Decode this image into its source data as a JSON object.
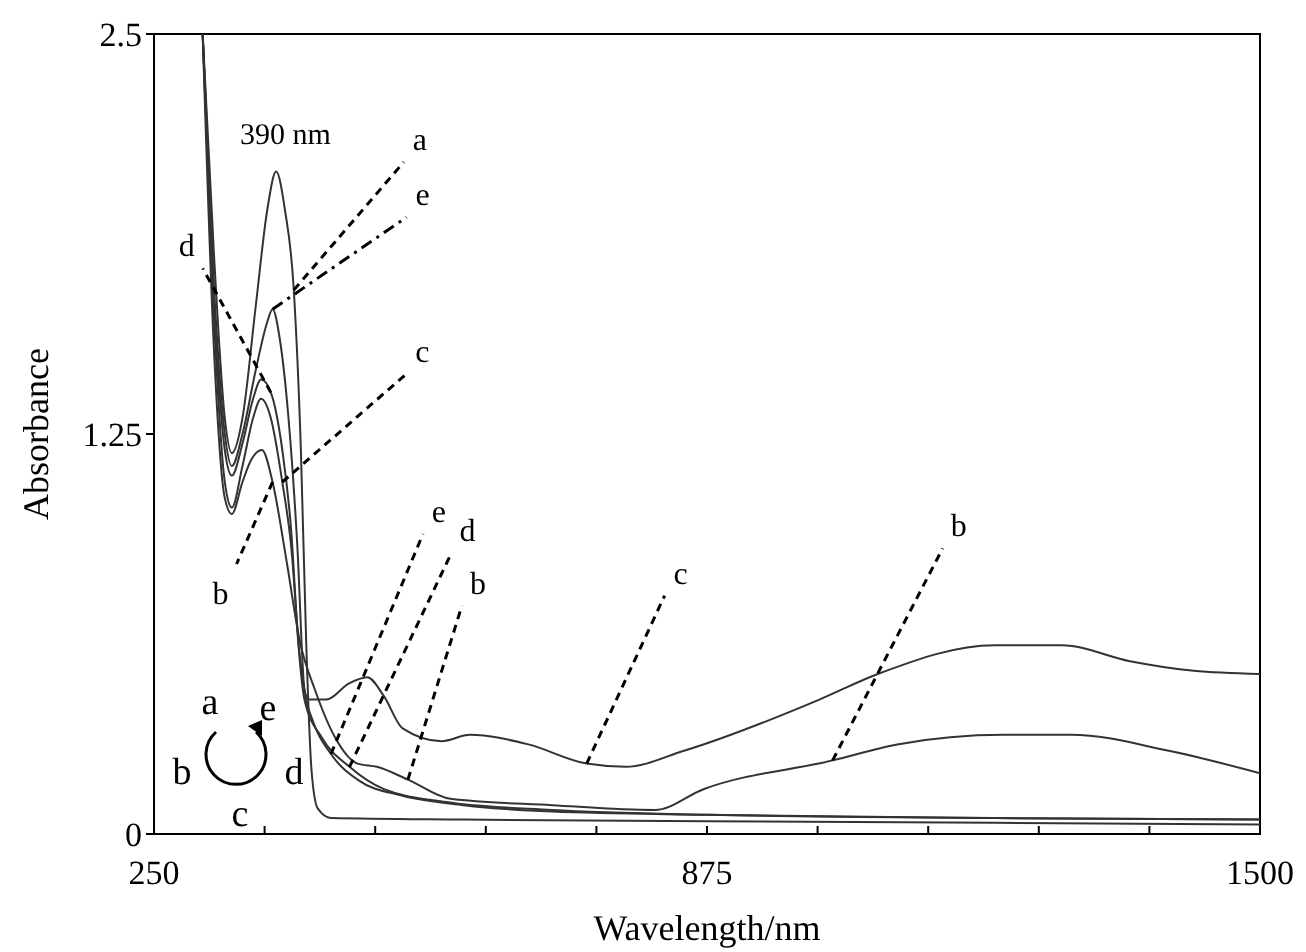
{
  "chart_data": {
    "type": "line",
    "xlabel": "Wavelength/nm",
    "ylabel": "Absorbance",
    "xlim": [
      250,
      1500
    ],
    "ylim": [
      0,
      2.5
    ],
    "xticks": [
      250,
      {
        "value": 375,
        "label": null
      },
      {
        "value": 500,
        "label": null
      },
      {
        "value": 625,
        "label": null
      },
      {
        "value": 750,
        "label": null
      },
      875,
      {
        "value": 1000,
        "label": null
      },
      {
        "value": 1125,
        "label": null
      },
      {
        "value": 1250,
        "label": null
      },
      {
        "value": 1375,
        "label": null
      },
      1500
    ],
    "yticks": [
      0,
      1.25,
      2.5
    ],
    "grid": false,
    "marker": "none",
    "line_style": "solid",
    "series": [
      {
        "color": "#333333",
        "x": [
          305,
          318,
          330,
          338,
          350,
          365,
          378,
          388,
          398,
          408,
          416,
          422,
          428,
          435,
          450,
          600,
          875,
          1200,
          1500
        ],
        "values": [
          2.5,
          1.8,
          1.3,
          1.19,
          1.3,
          1.65,
          1.95,
          2.07,
          1.95,
          1.7,
          1.2,
          0.6,
          0.2,
          0.08,
          0.05,
          0.045,
          0.04,
          0.035,
          0.03
        ]
      },
      {
        "color": "#333333",
        "x": [
          305,
          318,
          330,
          338,
          350,
          360,
          372,
          384,
          400,
          415,
          432,
          455,
          480,
          502,
          537,
          585,
          700,
          816,
          871,
          1017,
          1090,
          1210,
          1287,
          1397,
          1500
        ],
        "values": [
          2.5,
          1.5,
          1.05,
          1.0,
          1.1,
          1.17,
          1.2,
          1.1,
          0.85,
          0.6,
          0.45,
          0.3,
          0.22,
          0.21,
          0.17,
          0.11,
          0.09,
          0.075,
          0.14,
          0.23,
          0.28,
          0.31,
          0.31,
          0.26,
          0.19
        ]
      },
      {
        "color": "#333333",
        "x": [
          305,
          318,
          330,
          338,
          350,
          362,
          371,
          382,
          395,
          405,
          415,
          425,
          445,
          470,
          491,
          510,
          531,
          575,
          607,
          673,
          739,
          783,
          849,
          1002,
          1068,
          1200,
          1276,
          1353,
          1425,
          1500
        ],
        "values": [
          2.5,
          1.6,
          1.1,
          1.02,
          1.15,
          1.3,
          1.36,
          1.3,
          1.1,
          0.9,
          0.55,
          0.42,
          0.42,
          0.47,
          0.49,
          0.43,
          0.33,
          0.29,
          0.31,
          0.28,
          0.22,
          0.21,
          0.26,
          0.42,
          0.5,
          0.59,
          0.59,
          0.54,
          0.51,
          0.5
        ]
      },
      {
        "color": "#333333",
        "x": [
          305,
          318,
          330,
          338,
          350,
          362,
          371,
          382,
          395,
          405,
          413,
          420,
          440,
          471,
          510,
          580,
          700,
          875,
          1200,
          1500
        ],
        "values": [
          2.5,
          1.65,
          1.2,
          1.12,
          1.22,
          1.36,
          1.42,
          1.38,
          1.2,
          0.95,
          0.6,
          0.42,
          0.3,
          0.21,
          0.14,
          0.1,
          0.075,
          0.06,
          0.05,
          0.045
        ]
      },
      {
        "color": "#333333",
        "x": [
          305,
          318,
          330,
          338,
          350,
          365,
          378,
          384,
          392,
          402,
          412,
          420,
          430,
          450,
          480,
          530,
          600,
          700,
          875,
          1200,
          1500
        ],
        "values": [
          2.5,
          1.7,
          1.25,
          1.15,
          1.25,
          1.45,
          1.6,
          1.64,
          1.55,
          1.3,
          0.9,
          0.45,
          0.35,
          0.25,
          0.17,
          0.12,
          0.09,
          0.07,
          0.06,
          0.05,
          0.045
        ]
      }
    ],
    "annotations": [
      "390 nm",
      "a",
      "e",
      "d",
      "c",
      "b",
      {
        "text": "a",
        "x": 408,
        "y": 1.7
      },
      {
        "text": "e",
        "x": 384,
        "y": 1.64
      },
      {
        "text": "d",
        "x": 382,
        "y": 1.38
      },
      {
        "text": "c",
        "x": 395,
        "y": 1.1
      },
      {
        "text": "b",
        "x": 384,
        "y": 1.1
      },
      {
        "text": "e",
        "x": 450,
        "y": 0.25
      },
      {
        "text": "d",
        "x": 471,
        "y": 0.21
      },
      {
        "text": "b",
        "x": 537,
        "y": 0.17
      },
      {
        "text": "c",
        "x": 739,
        "y": 0.22
      },
      {
        "text": "b",
        "x": 1017,
        "y": 0.23
      }
    ]
  }
}
